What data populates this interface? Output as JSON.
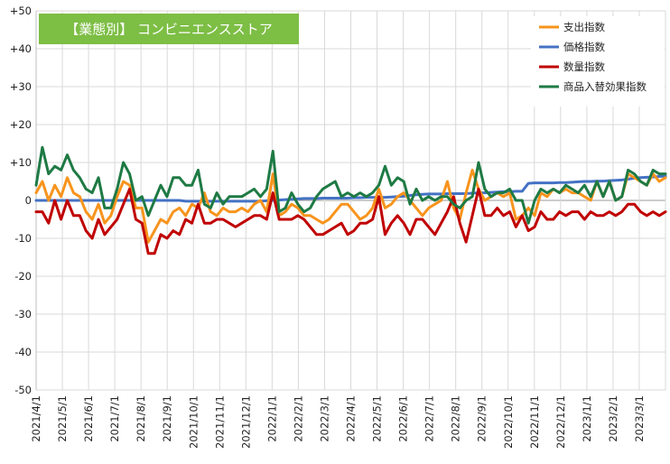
{
  "chart_data": {
    "type": "line",
    "title": "【業態別】 コンビニエンスストア",
    "title_bg": "#7DBE45",
    "title_color": "#ffffff",
    "ylim": [
      -50,
      50
    ],
    "y_ticks": [
      "+50",
      "+40",
      "+30",
      "+20",
      "+10",
      "0",
      "-10",
      "-20",
      "-30",
      "-40",
      "-50"
    ],
    "y_tick_values": [
      50,
      40,
      30,
      20,
      10,
      0,
      -10,
      -20,
      -30,
      -40,
      -50
    ],
    "x_tick_labels": [
      "2021/4/1",
      "2021/5/1",
      "2021/6/1",
      "2021/7/1",
      "2021/8/1",
      "2021/9/1",
      "2021/10/1",
      "2021/11/1",
      "2021/12/1",
      "2022/1/1",
      "2022/2/1",
      "2022/3/1",
      "2022/4/1",
      "2022/5/1",
      "2022/6/1",
      "2022/7/1",
      "2022/8/1",
      "2022/9/1",
      "2022/10/1",
      "2022/11/1",
      "2022/12/1",
      "2023/1/1",
      "2023/2/1",
      "2023/3/1"
    ],
    "grid": true,
    "legend_position": "top-right",
    "series": [
      {
        "name": "支出指数",
        "color": "#F7941D",
        "values": [
          2,
          5,
          0,
          4,
          1,
          6,
          2,
          1,
          -3,
          -5,
          -1,
          -6,
          -4,
          1,
          5,
          4,
          -2,
          -2,
          -11,
          -8,
          -5,
          -6,
          -3,
          -2,
          -4,
          -1,
          -2,
          2,
          -3,
          -4,
          -2,
          -3,
          -3,
          -2,
          -3,
          -1,
          0,
          -3,
          7,
          -4,
          -3,
          -1,
          -2,
          -4,
          -4,
          -5,
          -6,
          -5,
          -3,
          -1,
          -1,
          -3,
          -5,
          -4,
          -2,
          3,
          -2,
          -1,
          1,
          2,
          0,
          -2,
          -4,
          -2,
          -1,
          0,
          5,
          -2,
          -5,
          2,
          8,
          3,
          0,
          1,
          2,
          1,
          2,
          -5,
          -4,
          -2,
          -4,
          2,
          1,
          3,
          2,
          3,
          2,
          2,
          1,
          0,
          5,
          1,
          5,
          0,
          1,
          7,
          6,
          5,
          4,
          7,
          5,
          6
        ]
      },
      {
        "name": "価格指数",
        "color": "#4472C4",
        "values": [
          0,
          0,
          0,
          0,
          0,
          0,
          0,
          0,
          0,
          0,
          0,
          0,
          0,
          0,
          0,
          0,
          0,
          0,
          0,
          0,
          0,
          0,
          0,
          0,
          -0.2,
          -0.2,
          -0.2,
          -0.2,
          -0.2,
          -0.2,
          -0.2,
          -0.2,
          -0.2,
          -0.2,
          -0.2,
          -0.2,
          -0.2,
          -0.1,
          0,
          0.1,
          0.2,
          0.3,
          0.4,
          0.5,
          0.5,
          0.5,
          0.6,
          0.6,
          0.6,
          0.6,
          0.6,
          0.7,
          0.7,
          0.8,
          0.8,
          0.8,
          0.8,
          0.9,
          1.0,
          1.1,
          1.3,
          1.5,
          1.6,
          1.7,
          1.7,
          1.7,
          1.8,
          1.8,
          1.8,
          1.8,
          1.9,
          2.0,
          2.0,
          2.1,
          2.2,
          2.3,
          2.3,
          2.4,
          2.4,
          4.5,
          4.6,
          4.6,
          4.6,
          4.6,
          4.7,
          4.7,
          4.8,
          4.9,
          5.0,
          5.0,
          5.1,
          5.1,
          5.2,
          5.3,
          5.4,
          5.6,
          5.9,
          6.0,
          6.1,
          6.2,
          6.3,
          6.4
        ]
      },
      {
        "name": "数量指数",
        "color": "#C00000",
        "values": [
          -3,
          -3,
          -6,
          0,
          -5,
          0,
          -4,
          -4,
          -8,
          -10,
          -5,
          -9,
          -7,
          -5,
          -1,
          3,
          -5,
          -6,
          -14,
          -14,
          -9,
          -10,
          -8,
          -9,
          -5,
          -6,
          -1,
          -6,
          -6,
          -5,
          -5,
          -6,
          -7,
          -6,
          -5,
          -4,
          -4,
          -5,
          2,
          -5,
          -5,
          -5,
          -4,
          -5,
          -7,
          -9,
          -9,
          -8,
          -7,
          -6,
          -9,
          -8,
          -6,
          -6,
          -5,
          1,
          -9,
          -6,
          -4,
          -6,
          -9,
          -5,
          -5,
          -7,
          -9,
          -6,
          -3,
          1,
          -6,
          -11,
          -4,
          3,
          -4,
          -4,
          -2,
          -4,
          -3,
          -7,
          -4,
          -8,
          -7,
          -3,
          -5,
          -5,
          -3,
          -4,
          -3,
          -3,
          -5,
          -3,
          -4,
          -4,
          -3,
          -4,
          -3,
          -1,
          -1,
          -3,
          -4,
          -3,
          -4,
          -3
        ]
      },
      {
        "name": "商品入替効果指数",
        "color": "#1E7A44",
        "values": [
          4,
          14,
          7,
          9,
          8,
          12,
          8,
          6,
          3,
          2,
          6,
          -2,
          -2,
          3,
          10,
          7,
          0,
          1,
          -4,
          0,
          4,
          1,
          6,
          6,
          4,
          4,
          8,
          -1,
          -2,
          2,
          -1,
          1,
          1,
          1,
          2,
          3,
          1,
          3,
          13,
          -3,
          -2,
          2,
          -1,
          -3,
          -2,
          1,
          3,
          4,
          5,
          1,
          2,
          1,
          2,
          1,
          2,
          4,
          9,
          4,
          6,
          5,
          -1,
          3,
          0,
          1,
          0,
          1,
          1,
          -1,
          -2,
          0,
          1,
          10,
          3,
          1,
          2,
          2,
          3,
          0,
          0,
          -6,
          0,
          3,
          2,
          3,
          2,
          4,
          3,
          2,
          4,
          1,
          5,
          1,
          5,
          0,
          1,
          8,
          7,
          5,
          4,
          8,
          7,
          7
        ]
      }
    ]
  }
}
